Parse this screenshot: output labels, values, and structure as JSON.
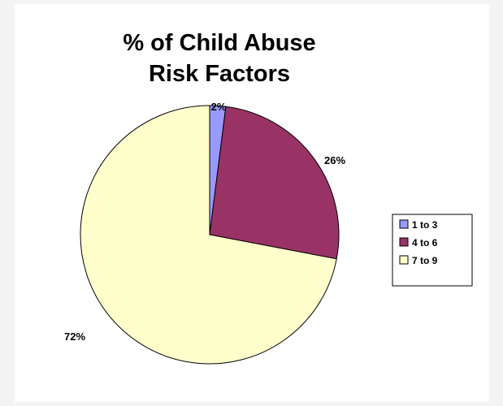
{
  "chart_data": {
    "type": "pie",
    "title_lines": [
      "% of Child Abuse",
      "Risk Factors"
    ],
    "slices": [
      {
        "label": "1 to 3",
        "value": 2,
        "data_label": "2%",
        "color": "#9999ff"
      },
      {
        "label": "4 to 6",
        "value": 26,
        "data_label": "26%",
        "color": "#993366"
      },
      {
        "label": "7 to 9",
        "value": 72,
        "data_label": "72%",
        "color": "#ffffcc"
      }
    ],
    "start_angle_deg": 0,
    "direction": "clockwise",
    "legend_position": "right"
  }
}
